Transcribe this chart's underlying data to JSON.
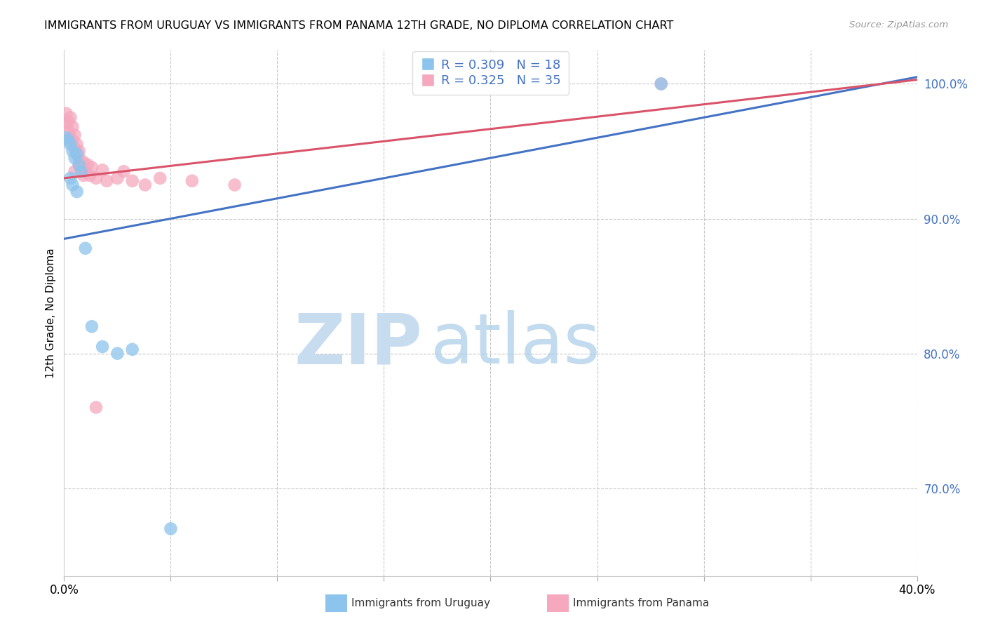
{
  "title": "IMMIGRANTS FROM URUGUAY VS IMMIGRANTS FROM PANAMA 12TH GRADE, NO DIPLOMA CORRELATION CHART",
  "source": "Source: ZipAtlas.com",
  "ylabel": "12th Grade, No Diploma",
  "legend_label1": "Immigrants from Uruguay",
  "legend_label2": "Immigrants from Panama",
  "R_uruguay": 0.309,
  "N_uruguay": 18,
  "R_panama": 0.325,
  "N_panama": 35,
  "xlim": [
    0.0,
    0.4
  ],
  "ylim": [
    0.635,
    1.025
  ],
  "x_ticks": [
    0.0,
    0.05,
    0.1,
    0.15,
    0.2,
    0.25,
    0.3,
    0.35,
    0.4
  ],
  "y_ticks_right": [
    0.7,
    0.8,
    0.9,
    1.0
  ],
  "color_uruguay": "#8DC4ED",
  "color_panama": "#F5A8BE",
  "line_color_uruguay": "#4472C4",
  "line_color_panama": "#D9546A",
  "uruguay_x": [
    0.001,
    0.002,
    0.003,
    0.004,
    0.005,
    0.006,
    0.007,
    0.008,
    0.01,
    0.013,
    0.018,
    0.025,
    0.032,
    0.05,
    0.28,
    0.003,
    0.004,
    0.006
  ],
  "uruguay_y": [
    0.96,
    0.958,
    0.955,
    0.95,
    0.945,
    0.948,
    0.94,
    0.935,
    0.878,
    0.82,
    0.805,
    0.8,
    0.803,
    0.67,
    1.0,
    0.93,
    0.925,
    0.92
  ],
  "panama_x": [
    0.001,
    0.001,
    0.002,
    0.002,
    0.003,
    0.003,
    0.004,
    0.004,
    0.005,
    0.005,
    0.006,
    0.006,
    0.007,
    0.007,
    0.008,
    0.009,
    0.01,
    0.011,
    0.012,
    0.013,
    0.015,
    0.018,
    0.02,
    0.025,
    0.028,
    0.032,
    0.038,
    0.045,
    0.06,
    0.08,
    0.005,
    0.007,
    0.009,
    0.28,
    0.015
  ],
  "panama_y": [
    0.978,
    0.97,
    0.972,
    0.965,
    0.975,
    0.96,
    0.958,
    0.968,
    0.962,
    0.952,
    0.948,
    0.955,
    0.945,
    0.95,
    0.938,
    0.942,
    0.935,
    0.94,
    0.932,
    0.938,
    0.93,
    0.936,
    0.928,
    0.93,
    0.935,
    0.928,
    0.925,
    0.93,
    0.928,
    0.925,
    0.935,
    0.94,
    0.932,
    1.0,
    0.76
  ]
}
